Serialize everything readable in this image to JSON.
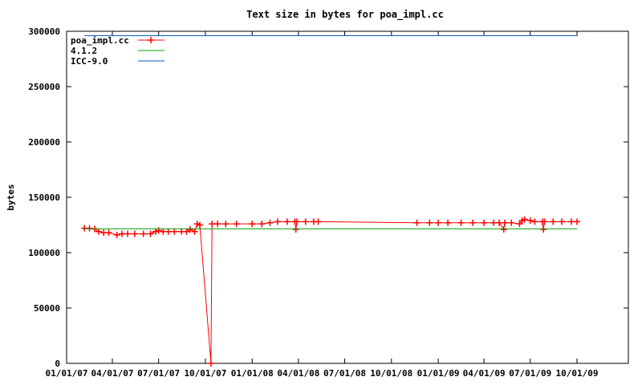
{
  "chart_data": {
    "type": "line",
    "title": "Text size in bytes for poa_impl.cc",
    "xlabel": "",
    "ylabel": "bytes",
    "ylim": [
      0,
      300000
    ],
    "xlim": [
      "2007-01-01",
      "2010-01-10"
    ],
    "grid": false,
    "legend_position": "top-left",
    "x_ticks": [
      "01/01/07",
      "04/01/07",
      "07/01/07",
      "10/01/07",
      "01/01/08",
      "04/01/08",
      "07/01/08",
      "10/01/08",
      "01/01/09",
      "04/01/09",
      "07/01/09",
      "10/01/09"
    ],
    "y_ticks": [
      "0",
      "50000",
      "100000",
      "150000",
      "200000",
      "250000",
      "300000"
    ],
    "series": [
      {
        "name": "poa_impl.cc",
        "color": "#ff0000",
        "marker": "plus",
        "points": [
          [
            "2007-02-05",
            122000
          ],
          [
            "2007-02-15",
            122000
          ],
          [
            "2007-02-25",
            121500
          ],
          [
            "2007-03-05",
            119000
          ],
          [
            "2007-03-15",
            118000
          ],
          [
            "2007-03-25",
            118000
          ],
          [
            "2007-04-10",
            116000
          ],
          [
            "2007-04-20",
            117000
          ],
          [
            "2007-05-01",
            117000
          ],
          [
            "2007-05-15",
            117000
          ],
          [
            "2007-06-01",
            117000
          ],
          [
            "2007-06-15",
            117000
          ],
          [
            "2007-06-25",
            119000
          ],
          [
            "2007-07-01",
            120000
          ],
          [
            "2007-07-10",
            119000
          ],
          [
            "2007-07-20",
            119000
          ],
          [
            "2007-08-01",
            119000
          ],
          [
            "2007-08-15",
            119000
          ],
          [
            "2007-08-25",
            119000
          ],
          [
            "2007-09-01",
            121000
          ],
          [
            "2007-09-10",
            119000
          ],
          [
            "2007-09-15",
            126000
          ],
          [
            "2007-09-20",
            125000
          ],
          [
            "2007-10-12",
            0
          ],
          [
            "2007-10-14",
            126000
          ],
          [
            "2007-10-25",
            126000
          ],
          [
            "2007-11-10",
            126000
          ],
          [
            "2007-12-01",
            126000
          ],
          [
            "2008-01-01",
            126000
          ],
          [
            "2008-01-20",
            126000
          ],
          [
            "2008-02-05",
            127000
          ],
          [
            "2008-02-20",
            128000
          ],
          [
            "2008-03-10",
            128000
          ],
          [
            "2008-03-25",
            128000
          ],
          [
            "2008-03-27",
            121000
          ],
          [
            "2008-03-29",
            128000
          ],
          [
            "2008-04-15",
            128000
          ],
          [
            "2008-05-01",
            128000
          ],
          [
            "2008-05-10",
            128000
          ],
          [
            "2008-11-20",
            127000
          ],
          [
            "2008-12-15",
            127000
          ],
          [
            "2009-01-01",
            127000
          ],
          [
            "2009-01-20",
            127000
          ],
          [
            "2009-02-15",
            127000
          ],
          [
            "2009-03-10",
            127000
          ],
          [
            "2009-04-01",
            127000
          ],
          [
            "2009-04-20",
            127000
          ],
          [
            "2009-05-01",
            127000
          ],
          [
            "2009-05-10",
            121000
          ],
          [
            "2009-05-12",
            127000
          ],
          [
            "2009-05-25",
            127000
          ],
          [
            "2009-06-10",
            126000
          ],
          [
            "2009-06-15",
            129000
          ],
          [
            "2009-06-20",
            130000
          ],
          [
            "2009-07-01",
            129000
          ],
          [
            "2009-07-10",
            128000
          ],
          [
            "2009-07-25",
            128000
          ],
          [
            "2009-07-27",
            121000
          ],
          [
            "2009-07-29",
            128000
          ],
          [
            "2009-08-15",
            128000
          ],
          [
            "2009-09-01",
            128000
          ],
          [
            "2009-09-20",
            128000
          ],
          [
            "2009-10-01",
            128000
          ]
        ]
      },
      {
        "name": "4.1.2",
        "color": "#00a000",
        "marker": "none",
        "points": [
          [
            "2007-02-05",
            121500
          ],
          [
            "2009-10-01",
            121500
          ]
        ]
      },
      {
        "name": "ICC-9.0",
        "color": "#0060c0",
        "marker": "none",
        "points": [
          [
            "2007-02-05",
            296000
          ],
          [
            "2009-10-01",
            296000
          ]
        ]
      }
    ]
  }
}
